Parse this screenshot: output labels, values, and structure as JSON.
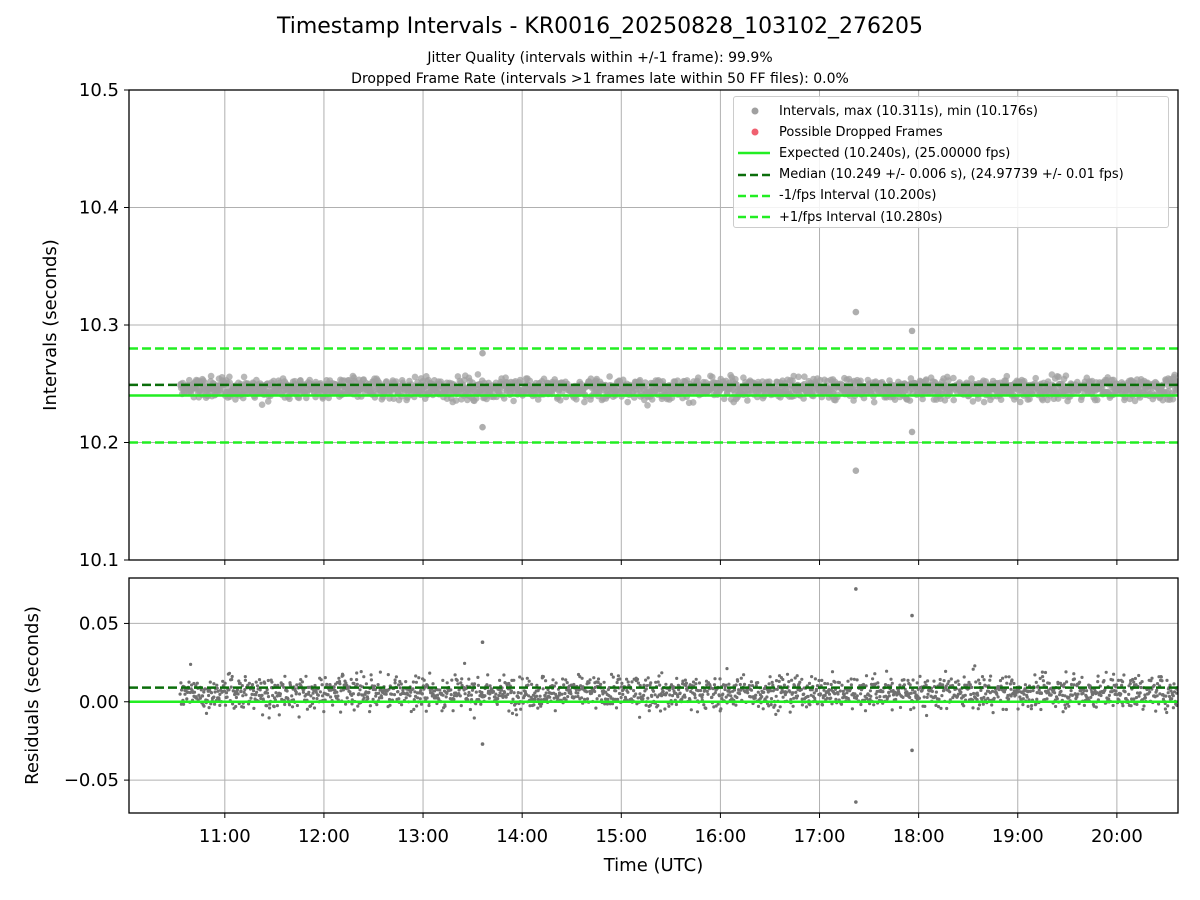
{
  "header": {
    "title": "Timestamp Intervals - KR0016_20250828_103102_276205",
    "subtitle1": "Jitter Quality (intervals within +/-1 frame): 99.9%",
    "subtitle2": "Dropped Frame Rate (intervals >1 frames late within 50 FF files): 0.0%"
  },
  "legend": {
    "items": [
      {
        "label": "Intervals, max (10.311s), min (10.176s)",
        "kind": "marker",
        "color": "#a0a0a0"
      },
      {
        "label": "Possible Dropped Frames",
        "kind": "marker",
        "color": "#f06070"
      },
      {
        "label": "Expected (10.240s), (25.00000 fps)",
        "kind": "solid",
        "color": "#22ee22"
      },
      {
        "label": "Median (10.249 +/- 0.006 s), (24.97739 +/- 0.01 fps)",
        "kind": "dashed",
        "color": "#0b6e0b"
      },
      {
        "label": "-1/fps Interval (10.200s)",
        "kind": "dashed",
        "color": "#22ee22"
      },
      {
        "label": "+1/fps Interval (10.280s)",
        "kind": "dashed",
        "color": "#22ee22"
      }
    ]
  },
  "chart_data": [
    {
      "type": "scatter",
      "name": "intervals",
      "xlabel": "",
      "ylabel": "Intervals (seconds)",
      "xlim": [
        "10:02",
        "20:37"
      ],
      "ylim": [
        10.1,
        10.5
      ],
      "yticks": [
        "10.1",
        "10.2",
        "10.3",
        "10.4",
        "10.5"
      ],
      "grid": true,
      "legend_position": "top-right",
      "data_start": "10:33",
      "data_end": "20:37",
      "expected": 10.24,
      "median": 10.249,
      "lower_bound": 10.2,
      "upper_bound": 10.28,
      "max": 10.311,
      "min": 10.176,
      "band_center": 10.246,
      "band_spread": 0.006,
      "outliers": [
        {
          "x": "17:22",
          "y": 10.311
        },
        {
          "x": "17:22",
          "y": 10.176
        },
        {
          "x": "17:56",
          "y": 10.295
        },
        {
          "x": "17:56",
          "y": 10.209
        },
        {
          "x": "13:36",
          "y": 10.213
        },
        {
          "x": "13:36",
          "y": 10.276
        }
      ],
      "colors": {
        "points": "#a0a0a0",
        "expected": "#22ee22",
        "median": "#0b6e0b",
        "bounds": "#22ee22"
      }
    },
    {
      "type": "scatter",
      "name": "residuals",
      "xlabel": "Time (UTC)",
      "ylabel": "Residuals (seconds)",
      "xlim": [
        "10:02",
        "20:37"
      ],
      "ylim": [
        -0.071,
        0.079
      ],
      "yticks": [
        "−0.05",
        "0.00",
        "0.05"
      ],
      "ytick_values": [
        -0.05,
        0.0,
        0.05
      ],
      "xticks": [
        "11:00",
        "12:00",
        "13:00",
        "14:00",
        "15:00",
        "16:00",
        "17:00",
        "18:00",
        "19:00",
        "20:00"
      ],
      "grid": true,
      "zero_line": 0.0,
      "median_residual": 0.009,
      "band_center": 0.006,
      "band_spread": 0.007,
      "outliers": [
        {
          "x": "17:22",
          "y": 0.072
        },
        {
          "x": "17:22",
          "y": -0.064
        },
        {
          "x": "17:56",
          "y": 0.055
        },
        {
          "x": "17:56",
          "y": -0.031
        },
        {
          "x": "13:36",
          "y": -0.027
        },
        {
          "x": "13:36",
          "y": 0.038
        }
      ],
      "colors": {
        "points": "#707070",
        "zero": "#22ee22",
        "median": "#0b6e0b"
      }
    }
  ]
}
